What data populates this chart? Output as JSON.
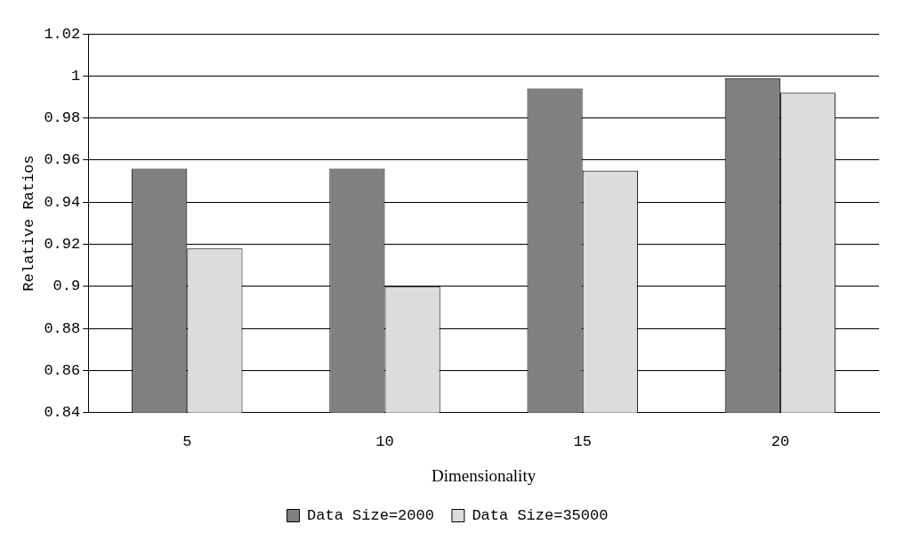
{
  "chart_data": {
    "type": "bar",
    "xlabel": "Dimensionality",
    "ylabel": "Relative Ratios",
    "categories": [
      "5",
      "10",
      "15",
      "20"
    ],
    "series": [
      {
        "name": "Data Size=2000",
        "color": "#808080",
        "values": [
          0.956,
          0.956,
          0.994,
          0.999
        ]
      },
      {
        "name": "Data Size=35000",
        "color": "#dcdcdc",
        "values": [
          0.918,
          0.9,
          0.955,
          0.992
        ]
      }
    ],
    "ylim": [
      0.84,
      1.02
    ],
    "yticks": [
      0.84,
      0.86,
      0.88,
      0.9,
      0.92,
      0.94,
      0.96,
      0.98,
      1,
      1.02
    ],
    "grid": "y",
    "legend": "bottom"
  }
}
